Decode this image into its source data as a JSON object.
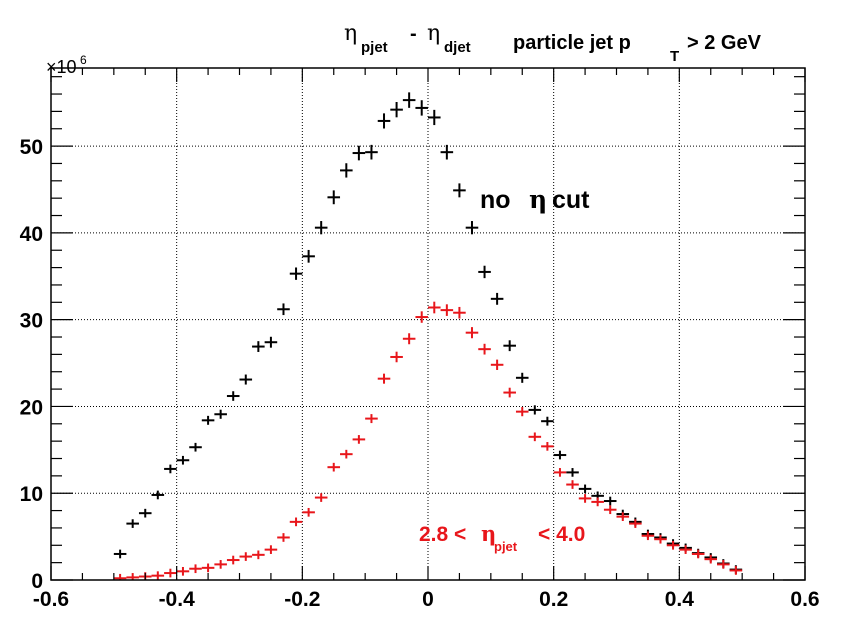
{
  "chart_data": {
    "type": "scatter",
    "title": {
      "eta1": "η",
      "sub1": "pjet",
      "dash": "-",
      "eta2": "η",
      "sub2": "djet",
      "text1": "particle jet p",
      "text_sub": "T",
      "text2": "> 2 GeV"
    },
    "y_multiplier": {
      "base": "×10",
      "exp": "6"
    },
    "xlim": [
      -0.6,
      0.6
    ],
    "ylim": [
      0,
      59
    ],
    "x_ticks": [
      -0.6,
      -0.4,
      -0.2,
      0,
      0.2,
      0.4,
      0.6
    ],
    "x_tick_labels": [
      "-0.6",
      "-0.4",
      "-0.2",
      "0",
      "0.2",
      "0.4",
      "0.6"
    ],
    "y_ticks": [
      0,
      10,
      20,
      30,
      40,
      50
    ],
    "y_tick_labels": [
      "0",
      "10",
      "20",
      "30",
      "40",
      "50"
    ],
    "grid": true,
    "bin_width": 0.02,
    "colors": {
      "black_series": "#000000",
      "red_series": "#e8161b"
    },
    "annotations": {
      "no_cut_text1": "no",
      "no_cut_eta": "η",
      "no_cut_text2": "cut",
      "range_low": "2.8 <",
      "range_eta": "η",
      "range_sub": "pjet",
      "range_high": "< 4.0"
    },
    "series": [
      {
        "color": "#000000",
        "x": [
          -0.49,
          -0.47,
          -0.45,
          -0.43,
          -0.41,
          -0.39,
          -0.37,
          -0.35,
          -0.33,
          -0.31,
          -0.29,
          -0.27,
          -0.25,
          -0.23,
          -0.21,
          -0.19,
          -0.17,
          -0.15,
          -0.13,
          -0.11,
          -0.09,
          -0.07,
          -0.05,
          -0.03,
          -0.01,
          0.01,
          0.03,
          0.05,
          0.07,
          0.09,
          0.11,
          0.13,
          0.15,
          0.17,
          0.19,
          0.21,
          0.23,
          0.25,
          0.27,
          0.29,
          0.31,
          0.33,
          0.35,
          0.37,
          0.39,
          0.41,
          0.43,
          0.45,
          0.47,
          0.49
        ],
        "y": [
          3.0,
          6.5,
          7.7,
          9.8,
          12.8,
          13.8,
          15.3,
          18.4,
          19.1,
          21.2,
          23.1,
          26.9,
          27.4,
          31.2,
          35.3,
          37.3,
          40.6,
          44.1,
          47.2,
          49.2,
          49.3,
          52.9,
          54.2,
          55.3,
          54.4,
          53.3,
          49.3,
          44.9,
          40.6,
          35.5,
          32.4,
          27.0,
          23.3,
          19.6,
          18.3,
          14.4,
          12.4,
          10.5,
          9.7,
          9.1,
          7.6,
          6.7,
          5.3,
          4.9,
          4.2,
          3.7,
          3.1,
          2.6,
          1.9,
          1.2
        ]
      },
      {
        "color": "#e8161b",
        "x": [
          -0.49,
          -0.47,
          -0.45,
          -0.43,
          -0.41,
          -0.39,
          -0.37,
          -0.35,
          -0.33,
          -0.31,
          -0.29,
          -0.27,
          -0.25,
          -0.23,
          -0.21,
          -0.19,
          -0.17,
          -0.15,
          -0.13,
          -0.11,
          -0.09,
          -0.07,
          -0.05,
          -0.03,
          -0.01,
          0.01,
          0.03,
          0.05,
          0.07,
          0.09,
          0.11,
          0.13,
          0.15,
          0.17,
          0.19,
          0.21,
          0.23,
          0.25,
          0.27,
          0.29,
          0.31,
          0.33,
          0.35,
          0.37,
          0.39,
          0.41,
          0.43,
          0.45,
          0.47,
          0.49
        ],
        "y": [
          0.2,
          0.3,
          0.4,
          0.5,
          0.8,
          1.0,
          1.3,
          1.4,
          1.8,
          2.3,
          2.7,
          2.9,
          3.5,
          4.9,
          6.7,
          7.8,
          9.5,
          13.0,
          14.5,
          16.2,
          18.6,
          23.2,
          25.7,
          27.8,
          30.3,
          31.4,
          31.1,
          30.8,
          28.5,
          26.6,
          24.8,
          21.6,
          19.4,
          16.5,
          15.4,
          12.4,
          11.0,
          9.4,
          9.0,
          8.1,
          7.3,
          6.5,
          5.1,
          4.7,
          4.0,
          3.5,
          3.0,
          2.4,
          1.8,
          1.1
        ]
      }
    ]
  }
}
